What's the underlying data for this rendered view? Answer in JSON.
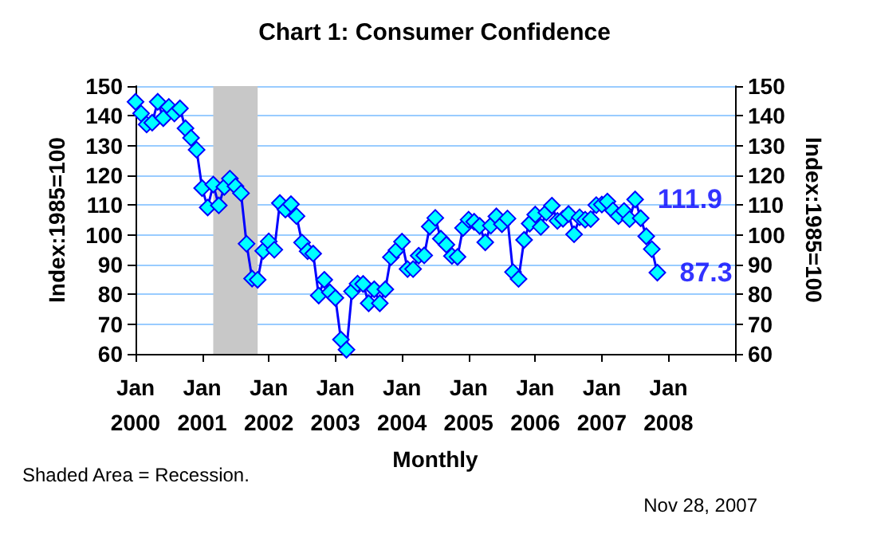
{
  "chart_data": {
    "type": "line",
    "title": "Chart 1: Consumer Confidence",
    "xlabel": "Monthly",
    "ylabel": "Index:1985=100",
    "y2label": "Index:1985=100",
    "x": [
      "2000-01",
      "2000-02",
      "2000-03",
      "2000-04",
      "2000-05",
      "2000-06",
      "2000-07",
      "2000-08",
      "2000-09",
      "2000-10",
      "2000-11",
      "2000-12",
      "2001-01",
      "2001-02",
      "2001-03",
      "2001-04",
      "2001-05",
      "2001-06",
      "2001-07",
      "2001-08",
      "2001-09",
      "2001-10",
      "2001-11",
      "2001-12",
      "2002-01",
      "2002-02",
      "2002-03",
      "2002-04",
      "2002-05",
      "2002-06",
      "2002-07",
      "2002-08",
      "2002-09",
      "2002-10",
      "2002-11",
      "2002-12",
      "2003-01",
      "2003-02",
      "2003-03",
      "2003-04",
      "2003-05",
      "2003-06",
      "2003-07",
      "2003-08",
      "2003-09",
      "2003-10",
      "2003-11",
      "2003-12",
      "2004-01",
      "2004-02",
      "2004-03",
      "2004-04",
      "2004-05",
      "2004-06",
      "2004-07",
      "2004-08",
      "2004-09",
      "2004-10",
      "2004-11",
      "2004-12",
      "2005-01",
      "2005-02",
      "2005-03",
      "2005-04",
      "2005-05",
      "2005-06",
      "2005-07",
      "2005-08",
      "2005-09",
      "2005-10",
      "2005-11",
      "2005-12",
      "2006-01",
      "2006-02",
      "2006-03",
      "2006-04",
      "2006-05",
      "2006-06",
      "2006-07",
      "2006-08",
      "2006-09",
      "2006-10",
      "2006-11",
      "2006-12",
      "2007-01",
      "2007-02",
      "2007-03",
      "2007-04",
      "2007-05",
      "2007-06",
      "2007-07",
      "2007-08",
      "2007-09",
      "2007-10",
      "2007-11"
    ],
    "series": [
      {
        "color": "#00ffff",
        "values": [
          144.7,
          140.8,
          137.1,
          137.7,
          144.7,
          139.2,
          143.0,
          140.8,
          142.5,
          135.8,
          132.6,
          128.6,
          115.7,
          109.2,
          116.9,
          109.9,
          116.1,
          118.9,
          116.3,
          114.0,
          97.0,
          85.3,
          84.9,
          94.6,
          97.8,
          95.0,
          110.7,
          108.5,
          110.3,
          106.3,
          97.4,
          94.5,
          93.7,
          79.6,
          84.9,
          80.7,
          78.8,
          64.8,
          61.4,
          81.0,
          83.6,
          83.5,
          77.0,
          81.7,
          77.0,
          81.7,
          92.5,
          94.8,
          97.7,
          88.5,
          88.5,
          93.0,
          93.1,
          102.8,
          105.7,
          98.7,
          96.7,
          92.9,
          92.6,
          102.3,
          105.1,
          104.4,
          103.0,
          97.5,
          103.1,
          106.2,
          103.6,
          105.5,
          87.5,
          85.2,
          98.3,
          103.8,
          106.8,
          102.7,
          107.5,
          109.8,
          104.7,
          105.4,
          107.0,
          100.2,
          105.9,
          105.1,
          105.3,
          110.0,
          110.2,
          111.2,
          108.2,
          106.3,
          108.0,
          105.3,
          111.9,
          105.6,
          99.5,
          95.2,
          87.3
        ]
      }
    ],
    "xlim": [
      "2000-01",
      "2009-01"
    ],
    "xticks": [
      {
        "value": "2000-01",
        "label": "Jan\n2000"
      },
      {
        "value": "2001-01",
        "label": "Jan\n2001"
      },
      {
        "value": "2002-01",
        "label": "Jan\n2002"
      },
      {
        "value": "2003-01",
        "label": "Jan\n2003"
      },
      {
        "value": "2004-01",
        "label": "Jan\n2004"
      },
      {
        "value": "2005-01",
        "label": "Jan\n2005"
      },
      {
        "value": "2006-01",
        "label": "Jan\n2006"
      },
      {
        "value": "2007-01",
        "label": "Jan\n2007"
      },
      {
        "value": "2008-01",
        "label": "Jan\n2008"
      },
      {
        "value": "2009-01",
        "label": null
      }
    ],
    "ylim": [
      60,
      150
    ],
    "yticks": [
      60,
      70,
      80,
      90,
      100,
      110,
      120,
      130,
      140,
      150
    ],
    "y2lim": [
      60,
      150
    ],
    "y2ticks": [
      60,
      70,
      80,
      90,
      100,
      110,
      120,
      130,
      140,
      150
    ],
    "bands": [
      {
        "axis": "x",
        "from": "2001-03",
        "to": "2001-11",
        "color": "#c8c8c8"
      }
    ],
    "annotations": [
      {
        "text": "111.9",
        "x": "2007-07",
        "y": 111.9
      },
      {
        "text": "87.3",
        "x": "2007-11",
        "y": 87.3
      },
      "Shaded Area = Recession.",
      "Nov 28, 2007"
    ],
    "grid": "y",
    "marker": "diamond",
    "line_style": "solid"
  }
}
